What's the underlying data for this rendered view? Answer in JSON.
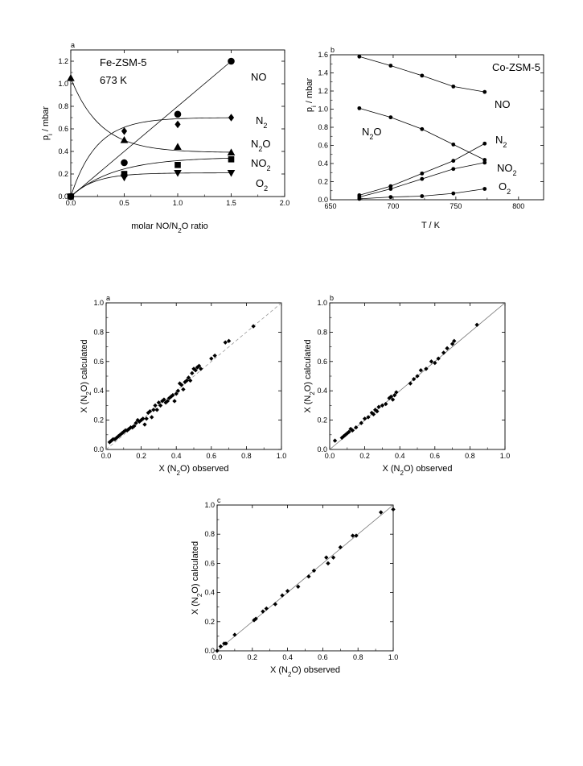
{
  "chart_data": [
    {
      "id": "fe",
      "type": "line",
      "panel_label": "a",
      "annotations": [
        "Fe-ZSM-5",
        "673 K"
      ],
      "xlabel": "molar NO/N2O ratio",
      "ylabel": "pi / mbar",
      "xlim": [
        0.0,
        2.0
      ],
      "ylim": [
        0.0,
        1.3
      ],
      "xticks": [
        "0.0",
        "0.5",
        "1.0",
        "1.5",
        "2.0"
      ],
      "yticks": [
        "0.0",
        "0.2",
        "0.4",
        "0.6",
        "0.8",
        "1.0",
        "1.2"
      ],
      "grid": false,
      "series": [
        {
          "name": "NO",
          "marker": "circle",
          "points": [
            [
              0,
              0
            ],
            [
              0.5,
              0.3
            ],
            [
              1.0,
              0.73
            ],
            [
              1.5,
              1.2
            ]
          ]
        },
        {
          "name": "N2",
          "marker": "diamond",
          "points": [
            [
              0,
              0
            ],
            [
              0.5,
              0.58
            ],
            [
              1.0,
              0.64
            ],
            [
              1.5,
              0.7
            ]
          ]
        },
        {
          "name": "N2O",
          "marker": "triangle-up",
          "points": [
            [
              0,
              1.05
            ],
            [
              0.5,
              0.5
            ],
            [
              1.0,
              0.44
            ],
            [
              1.5,
              0.39
            ]
          ]
        },
        {
          "name": "NO2",
          "marker": "square",
          "points": [
            [
              0,
              0
            ],
            [
              0.5,
              0.2
            ],
            [
              1.0,
              0.28
            ],
            [
              1.5,
              0.33
            ]
          ]
        },
        {
          "name": "O2",
          "marker": "triangle-down",
          "points": [
            [
              0,
              0
            ],
            [
              0.5,
              0.17
            ],
            [
              1.0,
              0.21
            ],
            [
              1.5,
              0.21
            ]
          ]
        }
      ]
    },
    {
      "id": "co",
      "type": "line",
      "panel_label": "b",
      "annotations": [
        "Co-ZSM-5"
      ],
      "xlabel": "T / K",
      "ylabel": "pi / mbar",
      "xlim": [
        650,
        820
      ],
      "ylim": [
        0.0,
        1.6
      ],
      "xticks": [
        "650",
        "700",
        "750",
        "800"
      ],
      "yticks": [
        "0.0",
        "0.2",
        "0.4",
        "0.6",
        "0.8",
        "1.0",
        "1.2",
        "1.4",
        "1.6"
      ],
      "grid": false,
      "series": [
        {
          "name": "NO",
          "marker": "dot",
          "points": [
            [
              673,
              1.58
            ],
            [
              698,
              1.48
            ],
            [
              723,
              1.37
            ],
            [
              748,
              1.25
            ],
            [
              773,
              1.19
            ]
          ]
        },
        {
          "name": "N2O",
          "marker": "dot",
          "points": [
            [
              673,
              1.01
            ],
            [
              698,
              0.91
            ],
            [
              723,
              0.78
            ],
            [
              748,
              0.61
            ],
            [
              773,
              0.44
            ]
          ]
        },
        {
          "name": "N2",
          "marker": "dot",
          "points": [
            [
              673,
              0.05
            ],
            [
              698,
              0.15
            ],
            [
              723,
              0.29
            ],
            [
              748,
              0.43
            ],
            [
              773,
              0.62
            ]
          ]
        },
        {
          "name": "NO2",
          "marker": "dot",
          "points": [
            [
              673,
              0.03
            ],
            [
              698,
              0.12
            ],
            [
              723,
              0.23
            ],
            [
              748,
              0.34
            ],
            [
              773,
              0.41
            ]
          ]
        },
        {
          "name": "O2",
          "marker": "dot",
          "points": [
            [
              673,
              0.01
            ],
            [
              698,
              0.03
            ],
            [
              723,
              0.04
            ],
            [
              748,
              0.07
            ],
            [
              773,
              0.12
            ]
          ]
        }
      ]
    },
    {
      "id": "pa",
      "type": "scatter",
      "panel_label": "a",
      "xlabel": "X (N2O) observed",
      "ylabel": "X (N2O) calculated",
      "xlim": [
        0.0,
        1.0
      ],
      "ylim": [
        0.0,
        1.0
      ],
      "xticks": [
        "0.0",
        "0.2",
        "0.4",
        "0.6",
        "0.8",
        "1.0"
      ],
      "yticks": [
        "0.0",
        "0.2",
        "0.4",
        "0.6",
        "0.8",
        "1.0"
      ],
      "diagonal": "dashed",
      "grid": false,
      "points": [
        [
          0.02,
          0.05
        ],
        [
          0.03,
          0.06
        ],
        [
          0.04,
          0.07
        ],
        [
          0.05,
          0.07
        ],
        [
          0.06,
          0.08
        ],
        [
          0.07,
          0.09
        ],
        [
          0.08,
          0.1
        ],
        [
          0.09,
          0.11
        ],
        [
          0.1,
          0.12
        ],
        [
          0.11,
          0.13
        ],
        [
          0.12,
          0.13
        ],
        [
          0.13,
          0.14
        ],
        [
          0.14,
          0.15
        ],
        [
          0.15,
          0.15
        ],
        [
          0.16,
          0.16
        ],
        [
          0.17,
          0.18
        ],
        [
          0.18,
          0.2
        ],
        [
          0.19,
          0.19
        ],
        [
          0.2,
          0.2
        ],
        [
          0.21,
          0.21
        ],
        [
          0.22,
          0.17
        ],
        [
          0.23,
          0.21
        ],
        [
          0.24,
          0.25
        ],
        [
          0.25,
          0.26
        ],
        [
          0.26,
          0.22
        ],
        [
          0.27,
          0.27
        ],
        [
          0.28,
          0.3
        ],
        [
          0.29,
          0.27
        ],
        [
          0.3,
          0.32
        ],
        [
          0.31,
          0.3
        ],
        [
          0.32,
          0.33
        ],
        [
          0.33,
          0.34
        ],
        [
          0.34,
          0.32
        ],
        [
          0.35,
          0.33
        ],
        [
          0.36,
          0.35
        ],
        [
          0.37,
          0.36
        ],
        [
          0.38,
          0.37
        ],
        [
          0.39,
          0.33
        ],
        [
          0.4,
          0.38
        ],
        [
          0.41,
          0.4
        ],
        [
          0.42,
          0.45
        ],
        [
          0.43,
          0.44
        ],
        [
          0.44,
          0.41
        ],
        [
          0.45,
          0.46
        ],
        [
          0.46,
          0.47
        ],
        [
          0.47,
          0.49
        ],
        [
          0.48,
          0.47
        ],
        [
          0.49,
          0.52
        ],
        [
          0.5,
          0.55
        ],
        [
          0.51,
          0.54
        ],
        [
          0.52,
          0.56
        ],
        [
          0.53,
          0.57
        ],
        [
          0.54,
          0.55
        ],
        [
          0.6,
          0.62
        ],
        [
          0.62,
          0.64
        ],
        [
          0.68,
          0.73
        ],
        [
          0.7,
          0.74
        ],
        [
          0.84,
          0.84
        ]
      ]
    },
    {
      "id": "pb",
      "type": "scatter",
      "panel_label": "b",
      "xlabel": "X (N2O) observed",
      "ylabel": "X (N2O) calculated",
      "xlim": [
        0.0,
        1.0
      ],
      "ylim": [
        0.0,
        1.0
      ],
      "xticks": [
        "0.0",
        "0.2",
        "0.4",
        "0.6",
        "0.8",
        "1.0"
      ],
      "yticks": [
        "0.0",
        "0.2",
        "0.4",
        "0.6",
        "0.8",
        "1.0"
      ],
      "diagonal": "solid",
      "grid": false,
      "points": [
        [
          0.03,
          0.06
        ],
        [
          0.07,
          0.08
        ],
        [
          0.08,
          0.09
        ],
        [
          0.09,
          0.1
        ],
        [
          0.1,
          0.11
        ],
        [
          0.11,
          0.12
        ],
        [
          0.12,
          0.14
        ],
        [
          0.13,
          0.13
        ],
        [
          0.15,
          0.15
        ],
        [
          0.18,
          0.18
        ],
        [
          0.2,
          0.21
        ],
        [
          0.22,
          0.22
        ],
        [
          0.24,
          0.25
        ],
        [
          0.25,
          0.24
        ],
        [
          0.26,
          0.27
        ],
        [
          0.27,
          0.26
        ],
        [
          0.28,
          0.29
        ],
        [
          0.3,
          0.3
        ],
        [
          0.32,
          0.31
        ],
        [
          0.34,
          0.35
        ],
        [
          0.35,
          0.36
        ],
        [
          0.36,
          0.34
        ],
        [
          0.37,
          0.37
        ],
        [
          0.38,
          0.39
        ],
        [
          0.46,
          0.45
        ],
        [
          0.48,
          0.48
        ],
        [
          0.5,
          0.5
        ],
        [
          0.52,
          0.54
        ],
        [
          0.55,
          0.55
        ],
        [
          0.58,
          0.6
        ],
        [
          0.6,
          0.59
        ],
        [
          0.62,
          0.62
        ],
        [
          0.65,
          0.66
        ],
        [
          0.67,
          0.69
        ],
        [
          0.7,
          0.72
        ],
        [
          0.71,
          0.74
        ],
        [
          0.84,
          0.85
        ]
      ]
    },
    {
      "id": "pc",
      "type": "scatter",
      "panel_label": "c",
      "xlabel": "X (N2O) observed",
      "ylabel": "X (N2O) calculated",
      "xlim": [
        0.0,
        1.0
      ],
      "ylim": [
        0.0,
        1.0
      ],
      "xticks": [
        "0.0",
        "0.2",
        "0.4",
        "0.6",
        "0.8",
        "1.0"
      ],
      "yticks": [
        "0.0",
        "0.2",
        "0.4",
        "0.6",
        "0.8",
        "1.0"
      ],
      "diagonal": "solid",
      "grid": false,
      "points": [
        [
          0.0,
          0.0
        ],
        [
          0.02,
          0.03
        ],
        [
          0.04,
          0.05
        ],
        [
          0.05,
          0.05
        ],
        [
          0.1,
          0.11
        ],
        [
          0.21,
          0.21
        ],
        [
          0.22,
          0.22
        ],
        [
          0.26,
          0.27
        ],
        [
          0.28,
          0.29
        ],
        [
          0.33,
          0.32
        ],
        [
          0.37,
          0.38
        ],
        [
          0.4,
          0.41
        ],
        [
          0.46,
          0.44
        ],
        [
          0.52,
          0.51
        ],
        [
          0.55,
          0.55
        ],
        [
          0.62,
          0.64
        ],
        [
          0.63,
          0.6
        ],
        [
          0.66,
          0.64
        ],
        [
          0.7,
          0.71
        ],
        [
          0.77,
          0.79
        ],
        [
          0.79,
          0.79
        ],
        [
          0.93,
          0.95
        ],
        [
          1.0,
          0.97
        ]
      ]
    }
  ]
}
